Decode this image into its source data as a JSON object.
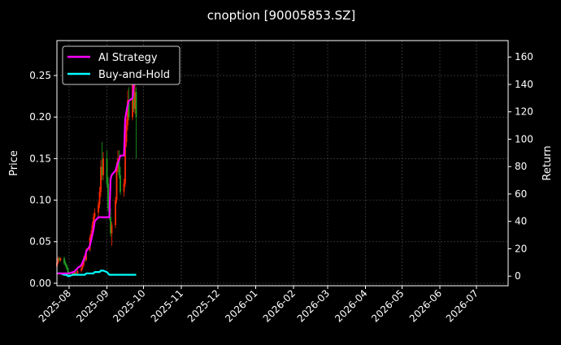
{
  "chart_data": {
    "type": "line",
    "title": "cnoption [90005853.SZ]",
    "ylabel_left": "Price",
    "ylabel_right": "Return",
    "xlim": [
      "2025-07-22",
      "2026-07-27"
    ],
    "ylim_left": [
      -0.003,
      0.292
    ],
    "ylim_right": [
      -7,
      172
    ],
    "grid": true,
    "legend_placement": "top-left",
    "x_ticks": [
      "2025-08",
      "2025-09",
      "2025-10",
      "2025-11",
      "2025-12",
      "2026-01",
      "2026-02",
      "2026-03",
      "2026-04",
      "2026-05",
      "2026-06",
      "2026-07"
    ],
    "y_ticks_left": [
      "0.00",
      "0.05",
      "0.10",
      "0.15",
      "0.20",
      "0.25"
    ],
    "y_ticks_right": [
      "0",
      "20",
      "40",
      "60",
      "80",
      "100",
      "120",
      "140",
      "160"
    ],
    "colors": {
      "up": "#ff2a00",
      "down": "#1f9e1f",
      "ai_strategy": "#ff00ff",
      "buy_and_hold": "#00ffff",
      "grid": "#444444"
    },
    "dates": [
      "2025-07-22",
      "2025-07-23",
      "2025-07-24",
      "2025-07-25",
      "2025-07-28",
      "2025-07-29",
      "2025-07-30",
      "2025-07-31",
      "2025-08-01",
      "2025-08-04",
      "2025-08-05",
      "2025-08-06",
      "2025-08-07",
      "2025-08-08",
      "2025-08-11",
      "2025-08-12",
      "2025-08-13",
      "2025-08-14",
      "2025-08-15",
      "2025-08-18",
      "2025-08-19",
      "2025-08-20",
      "2025-08-21",
      "2025-08-22",
      "2025-08-25",
      "2025-08-26",
      "2025-08-27",
      "2025-08-28",
      "2025-08-29",
      "2025-09-01",
      "2025-09-02",
      "2025-09-03",
      "2025-09-04",
      "2025-09-05",
      "2025-09-08",
      "2025-09-09",
      "2025-09-10",
      "2025-09-11",
      "2025-09-12",
      "2025-09-15",
      "2025-09-16",
      "2025-09-17",
      "2025-09-18",
      "2025-09-19",
      "2025-09-22",
      "2025-09-23",
      "2025-09-24",
      "2025-09-25"
    ],
    "candles": {
      "open": [
        0.02,
        0.025,
        0.03,
        0.028,
        0.03,
        0.024,
        0.022,
        0.018,
        0.012,
        0.01,
        0.012,
        0.011,
        0.013,
        0.012,
        0.015,
        0.018,
        0.022,
        0.03,
        0.028,
        0.04,
        0.055,
        0.06,
        0.07,
        0.08,
        0.085,
        0.095,
        0.11,
        0.14,
        0.13,
        0.15,
        0.12,
        0.09,
        0.08,
        0.06,
        0.07,
        0.1,
        0.14,
        0.15,
        0.13,
        0.11,
        0.12,
        0.17,
        0.19,
        0.22,
        0.2,
        0.25,
        0.21,
        0.23
      ],
      "high": [
        0.028,
        0.032,
        0.032,
        0.031,
        0.032,
        0.027,
        0.024,
        0.02,
        0.014,
        0.013,
        0.014,
        0.014,
        0.015,
        0.016,
        0.02,
        0.024,
        0.033,
        0.034,
        0.042,
        0.058,
        0.064,
        0.074,
        0.084,
        0.09,
        0.099,
        0.116,
        0.148,
        0.17,
        0.158,
        0.16,
        0.128,
        0.1,
        0.09,
        0.074,
        0.104,
        0.146,
        0.16,
        0.16,
        0.14,
        0.126,
        0.178,
        0.198,
        0.232,
        0.236,
        0.262,
        0.268,
        0.24,
        0.236
      ],
      "low": [
        0.018,
        0.023,
        0.026,
        0.026,
        0.022,
        0.02,
        0.016,
        0.01,
        0.009,
        0.009,
        0.01,
        0.01,
        0.011,
        0.011,
        0.013,
        0.016,
        0.02,
        0.026,
        0.026,
        0.038,
        0.052,
        0.057,
        0.066,
        0.076,
        0.08,
        0.09,
        0.104,
        0.124,
        0.124,
        0.116,
        0.086,
        0.076,
        0.056,
        0.045,
        0.066,
        0.096,
        0.134,
        0.126,
        0.106,
        0.104,
        0.116,
        0.164,
        0.184,
        0.196,
        0.196,
        0.206,
        0.204,
        0.15
      ],
      "close": [
        0.025,
        0.03,
        0.028,
        0.03,
        0.024,
        0.022,
        0.018,
        0.012,
        0.01,
        0.012,
        0.011,
        0.013,
        0.012,
        0.015,
        0.018,
        0.022,
        0.03,
        0.028,
        0.04,
        0.055,
        0.06,
        0.07,
        0.08,
        0.085,
        0.095,
        0.11,
        0.14,
        0.13,
        0.15,
        0.12,
        0.09,
        0.08,
        0.06,
        0.07,
        0.1,
        0.14,
        0.15,
        0.13,
        0.11,
        0.12,
        0.17,
        0.19,
        0.22,
        0.2,
        0.25,
        0.21,
        0.23,
        0.2
      ]
    },
    "series": [
      {
        "name": "AI Strategy",
        "axis": "right",
        "values": [
          2,
          2,
          2,
          2,
          2,
          2,
          2,
          2,
          2,
          3,
          3,
          4,
          5,
          6,
          8,
          10,
          12,
          14,
          18,
          22,
          26,
          30,
          34,
          40,
          43,
          43,
          43,
          43,
          43,
          43,
          43,
          43,
          71,
          74,
          77,
          80,
          83,
          85,
          88,
          88,
          115,
          120,
          125,
          128,
          130,
          140,
          150,
          155
        ]
      },
      {
        "name": "Buy-and-Hold",
        "axis": "right",
        "values": [
          2,
          2,
          2,
          2,
          1,
          1,
          1,
          0,
          0,
          1,
          1,
          1,
          1,
          1,
          1,
          1,
          1,
          1,
          2,
          2,
          2,
          2,
          2,
          3,
          3,
          3,
          4,
          4,
          4,
          3,
          2,
          1,
          1,
          1,
          1,
          1,
          1,
          1,
          1,
          1,
          1,
          1,
          1,
          1,
          1,
          1,
          1,
          1
        ]
      }
    ]
  }
}
